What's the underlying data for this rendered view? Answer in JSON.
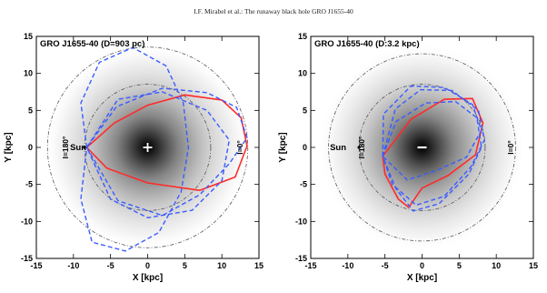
{
  "header": "I.F. Mirabel et al.: The runaway black hole GRO J1655-40",
  "chart_data": [
    {
      "type": "line",
      "title": "GRO J1655-40  (D=903 pc)",
      "xlabel": "X [kpc]",
      "ylabel": "Y [kpc]",
      "xlim": [
        -15,
        15
      ],
      "ylim": [
        -15,
        15
      ],
      "xticks": [
        -15,
        -10,
        -5,
        0,
        5,
        10,
        15
      ],
      "yticks": [
        -15,
        -10,
        -5,
        0,
        5,
        10,
        15
      ],
      "annotations": {
        "sun": "Sun",
        "l180": "l=180°",
        "l0": "l=0°"
      },
      "sun_position": [
        -8.5,
        0
      ],
      "center_marker": [
        0,
        0
      ],
      "circle_radii": [
        8.5,
        13.5
      ],
      "series": [
        {
          "style": "solid",
          "color": "#ff2a2a",
          "points": [
            [
              -8.2,
              0
            ],
            [
              -4.5,
              3.3
            ],
            [
              0,
              5.7
            ],
            [
              5,
              7.1
            ],
            [
              10,
              6.4
            ],
            [
              12.6,
              4
            ],
            [
              13.4,
              0.2
            ],
            [
              11.8,
              -4
            ],
            [
              7,
              -5.8
            ],
            [
              0,
              -4.8
            ],
            [
              -5.5,
              -2.8
            ],
            [
              -8.2,
              0
            ]
          ]
        },
        {
          "style": "dashed",
          "color": "#3a5cff",
          "points": [
            [
              -8.2,
              0
            ],
            [
              -9,
              6
            ],
            [
              -6.5,
              11.5
            ],
            [
              -2,
              13.5
            ],
            [
              2.5,
              11
            ],
            [
              4.8,
              6
            ],
            [
              5.5,
              0
            ],
            [
              4.5,
              -6
            ],
            [
              1.5,
              -11.5
            ],
            [
              -3,
              -14
            ],
            [
              -7.5,
              -12.8
            ],
            [
              -9,
              -7
            ],
            [
              -8.2,
              0
            ]
          ]
        },
        {
          "style": "dashed",
          "color": "#3a5cff",
          "points": [
            [
              -8.2,
              0
            ],
            [
              -4,
              6.5
            ],
            [
              2,
              7.5
            ],
            [
              8,
              5
            ],
            [
              11,
              1
            ],
            [
              10,
              -4.5
            ],
            [
              6,
              -8.5
            ],
            [
              0,
              -9.5
            ],
            [
              -5,
              -7
            ],
            [
              -8.2,
              0
            ]
          ]
        },
        {
          "style": "dashed",
          "color": "#3a5cff",
          "points": [
            [
              -8.2,
              0
            ],
            [
              -4,
              -7.2
            ],
            [
              2,
              -9.2
            ],
            [
              7,
              -6.4
            ],
            [
              11,
              -2.2
            ],
            [
              13.4,
              1.3
            ],
            [
              12,
              5.4
            ],
            [
              8,
              7.4
            ],
            [
              2,
              8
            ],
            [
              -4.2,
              5.5
            ],
            [
              -8.2,
              0
            ]
          ]
        }
      ]
    },
    {
      "type": "line",
      "title": "GRO J1655-40  (D:3.2 kpc)",
      "xlabel": "X [kpc]",
      "ylabel": "Y [kpc]",
      "xlim": [
        -15,
        15
      ],
      "ylim": [
        -15,
        15
      ],
      "xticks": [
        -15,
        -10,
        -5,
        0,
        5,
        10,
        15
      ],
      "yticks": [
        -15,
        -10,
        -5,
        0,
        5,
        10,
        15
      ],
      "annotations": {
        "sun": "Sun",
        "l180": "l=180°",
        "l0": "l=0°"
      },
      "sun_position": [
        -8.5,
        0
      ],
      "center_marker": [
        0,
        0
      ],
      "circle_radii": [
        8.5,
        12.6
      ],
      "series": [
        {
          "style": "solid",
          "color": "#ff2a2a",
          "points": [
            [
              -5.3,
              -1.2
            ],
            [
              -1.5,
              3.8
            ],
            [
              3,
              6.5
            ],
            [
              6.8,
              6.6
            ],
            [
              8.2,
              3.3
            ],
            [
              7.2,
              -1
            ],
            [
              3.5,
              -3.8
            ],
            [
              0,
              -5.5
            ],
            [
              -1.8,
              -8.1
            ],
            [
              -3.2,
              -7
            ],
            [
              -5,
              -3.6
            ],
            [
              -5.3,
              -1.2
            ]
          ]
        },
        {
          "style": "dashed",
          "color": "#3a5cff",
          "points": [
            [
              -5.3,
              -1.2
            ],
            [
              -5.2,
              4.5
            ],
            [
              -1.5,
              8.3
            ],
            [
              3,
              8.1
            ],
            [
              6.8,
              5.8
            ],
            [
              8,
              2.3
            ],
            [
              6,
              -1.3
            ],
            [
              2,
              -3.1
            ],
            [
              -2,
              -4.4
            ],
            [
              -5.3,
              -1.2
            ]
          ]
        },
        {
          "style": "dashed",
          "color": "#3a5cff",
          "points": [
            [
              -5.3,
              -1.2
            ],
            [
              -3.5,
              3.5
            ],
            [
              0.5,
              6
            ],
            [
              4.5,
              6.2
            ],
            [
              7.4,
              4
            ],
            [
              8,
              0
            ],
            [
              6.3,
              -3.6
            ],
            [
              2.3,
              -7.6
            ],
            [
              -1.2,
              -8.6
            ],
            [
              -3.5,
              -5.6
            ],
            [
              -5.3,
              -1.2
            ]
          ]
        },
        {
          "style": "dashed",
          "color": "#3a5cff",
          "points": [
            [
              -5.3,
              -1.2
            ],
            [
              -3.6,
              5.2
            ],
            [
              -0.2,
              7.8
            ],
            [
              4,
              7.7
            ],
            [
              7.6,
              5
            ],
            [
              8.4,
              1
            ],
            [
              6.6,
              -2.6
            ],
            [
              3,
              -6.6
            ],
            [
              -0.8,
              -7.8
            ],
            [
              -4,
              -5
            ],
            [
              -5.3,
              -1.2
            ]
          ]
        }
      ]
    }
  ]
}
